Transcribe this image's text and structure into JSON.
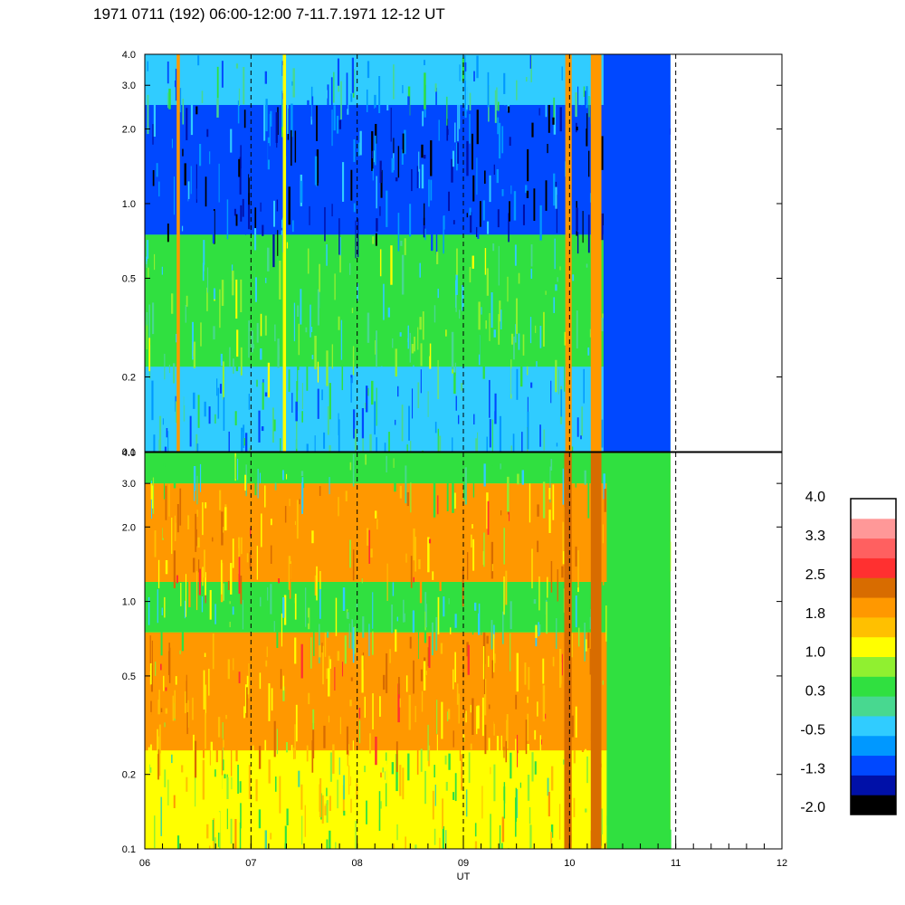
{
  "title": "1971 0711 (192) 06:00-12:00 7-11.7.1971  12-12 UT",
  "chart_data": {
    "type": "heatmap",
    "title": "1971 0711 (192) 06:00-12:00 7-11.7.1971  12-12 UT",
    "xlabel": "UT",
    "x_ticks": [
      "06",
      "07",
      "08",
      "09",
      "10",
      "11",
      "12"
    ],
    "xlim": [
      6,
      12
    ],
    "data_end_hour": 10.95,
    "dashed_hour_lines": [
      7,
      8,
      9,
      10,
      11
    ],
    "y_scale": "log",
    "ylim": [
      0.1,
      4.0
    ],
    "y_ticks": [
      "4.0",
      "3.0",
      "2.0",
      "1.0",
      "0.5",
      "0.2",
      "0.1"
    ],
    "y_tick_values": [
      4.0,
      3.0,
      2.0,
      1.0,
      0.5,
      0.2,
      0.1
    ],
    "panels": [
      {
        "name": "upper",
        "background_level": -0.5,
        "bands": [
          {
            "ymin": 0.1,
            "ymax": 0.22,
            "level": -0.5
          },
          {
            "ymin": 0.22,
            "ymax": 0.75,
            "level": 0.3
          },
          {
            "ymin": 0.75,
            "ymax": 2.5,
            "level": -1.3
          },
          {
            "ymin": 2.5,
            "ymax": 4.0,
            "level": -0.5
          }
        ],
        "events": [
          {
            "x0": 6.3,
            "x1": 6.33,
            "level": 1.8
          },
          {
            "x0": 7.3,
            "x1": 7.33,
            "level": 1.0
          },
          {
            "x0": 9.96,
            "x1": 10.02,
            "level": 1.8
          },
          {
            "x0": 10.2,
            "x1": 10.3,
            "level": 1.8
          },
          {
            "x0": 10.32,
            "x1": 10.95,
            "level": -1.3
          }
        ]
      },
      {
        "name": "lower",
        "background_level": 1.0,
        "bands": [
          {
            "ymin": 0.1,
            "ymax": 0.25,
            "level": 1.0
          },
          {
            "ymin": 0.25,
            "ymax": 0.75,
            "level": 1.8
          },
          {
            "ymin": 0.75,
            "ymax": 1.2,
            "level": 0.3
          },
          {
            "ymin": 1.2,
            "ymax": 3.0,
            "level": 1.8
          },
          {
            "ymin": 3.0,
            "ymax": 4.0,
            "level": 0.3
          }
        ],
        "events": [
          {
            "x0": 9.95,
            "x1": 10.02,
            "level": 2.5
          },
          {
            "x0": 10.2,
            "x1": 10.3,
            "level": 2.5
          },
          {
            "x0": 10.35,
            "x1": 10.95,
            "level": 0.3
          }
        ]
      }
    ],
    "colorbar": {
      "labels": [
        "4.0",
        "3.3",
        "2.5",
        "1.8",
        "1.0",
        "0.3",
        "-0.5",
        "-1.3",
        "-2.0"
      ],
      "min": -2.0,
      "max": 4.0,
      "colors": [
        "#000000",
        "#0010a8",
        "#0048ff",
        "#0098ff",
        "#30ccff",
        "#48d890",
        "#30e040",
        "#90f030",
        "#ffff00",
        "#ffc000",
        "#ff9800",
        "#d86c00",
        "#ff3030",
        "#ff6060",
        "#ff9898",
        "#ffffff"
      ]
    }
  }
}
